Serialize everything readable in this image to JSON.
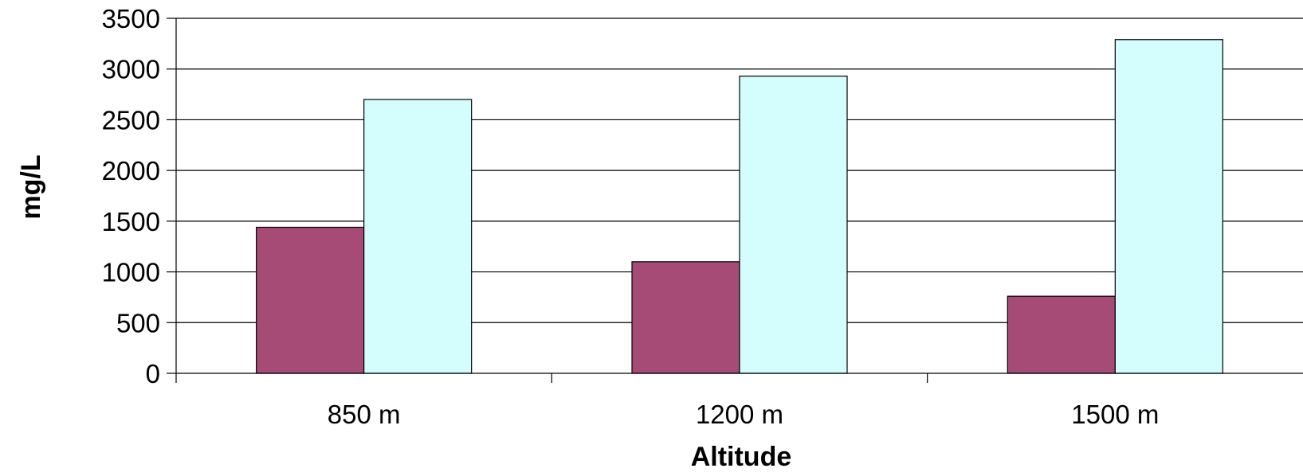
{
  "chart_data": {
    "type": "bar",
    "title": "",
    "xlabel": "Altitude",
    "ylabel": "mg/L",
    "categories": [
      "850 m",
      "1200 m",
      "1500 m"
    ],
    "series": [
      {
        "values": [
          1440,
          1100,
          760
        ],
        "color": "#A64A76"
      },
      {
        "values": [
          2700,
          2930,
          3290
        ],
        "color": "#D4FEFE"
      }
    ],
    "ylim": [
      0,
      3500
    ],
    "yticks": [
      "0",
      "500",
      "1000",
      "1500",
      "2000",
      "2500",
      "3000",
      "3500"
    ],
    "grid": true,
    "legend": "none",
    "colors": {
      "gridline": "#000000",
      "bar_outline": "#000000",
      "background": "#FFFFFF"
    }
  }
}
